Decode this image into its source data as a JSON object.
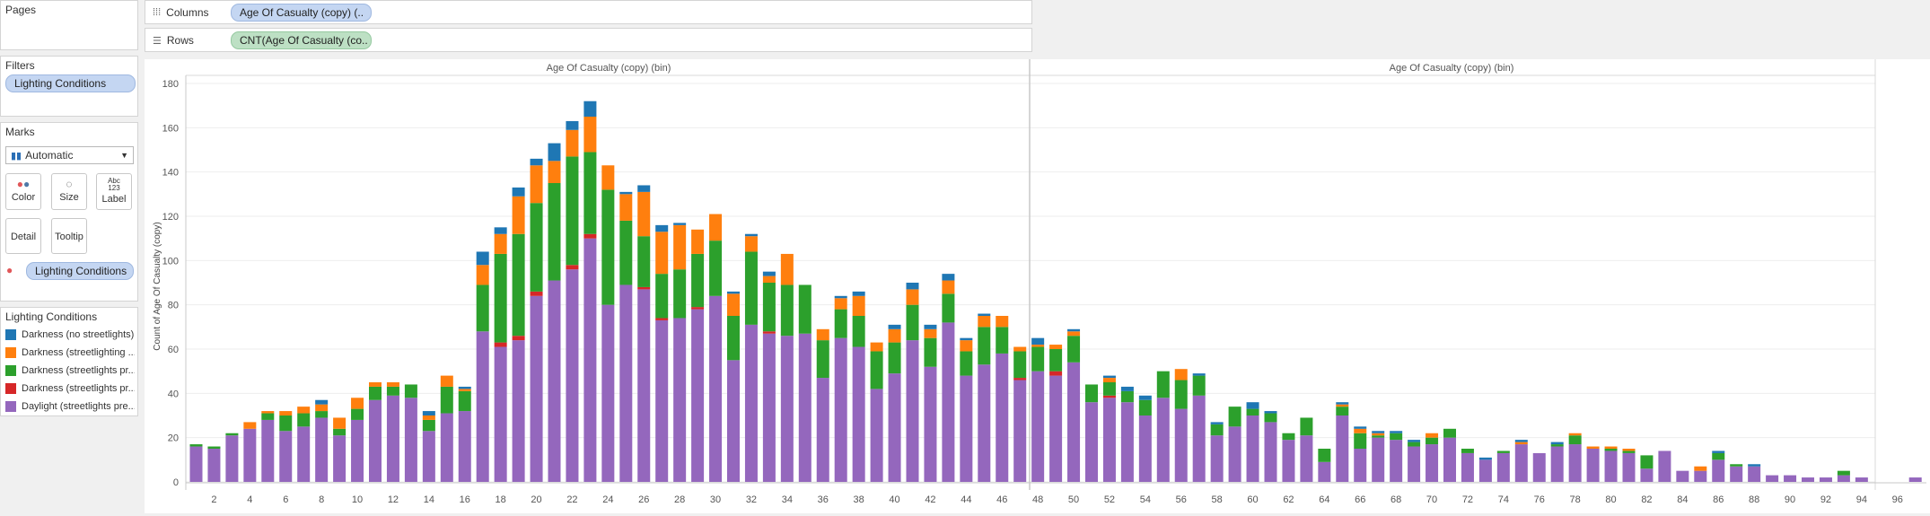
{
  "shelves": {
    "pages_label": "Pages",
    "filters_label": "Filters",
    "filter_pill": "Lighting Conditions",
    "marks_label": "Marks",
    "mark_type": "Automatic",
    "mark_buttons": {
      "color": "Color",
      "size": "Size",
      "label": "Label",
      "detail": "Detail",
      "tooltip": "Tooltip"
    },
    "color_pill": "Lighting Conditions",
    "columns_label": "Columns",
    "columns_pill": "Age Of Casualty (copy) (..",
    "rows_label": "Rows",
    "rows_pill": "CNT(Age Of Casualty (co.."
  },
  "legend": {
    "title": "Lighting Conditions",
    "items": [
      {
        "label": "Darkness (no streetlights)",
        "color": "#1f77b4"
      },
      {
        "label": "Darkness (streetlighting ...",
        "color": "#ff7f0e"
      },
      {
        "label": "Darkness (streetlights pr...",
        "color": "#2ca02c"
      },
      {
        "label": "Darkness (streetlights pr...",
        "color": "#d62728"
      },
      {
        "label": "Daylight (streetlights pre...",
        "color": "#9467bd"
      }
    ]
  },
  "chart_data": {
    "type": "bar",
    "stacked": true,
    "header_title": "Age Of Casualty (copy) (bin)",
    "ylabel": "Count of Age Of Casualty (copy)",
    "ylim": [
      0,
      180
    ],
    "yticks": [
      0,
      20,
      40,
      60,
      80,
      100,
      120,
      140,
      160,
      180
    ],
    "x": [
      1,
      2,
      3,
      4,
      5,
      6,
      7,
      8,
      9,
      10,
      11,
      12,
      13,
      14,
      15,
      16,
      17,
      18,
      19,
      20,
      21,
      22,
      23,
      24,
      25,
      26,
      27,
      28,
      29,
      30,
      31,
      32,
      33,
      34,
      35,
      36,
      37,
      38,
      39,
      40,
      41,
      42,
      43,
      44,
      45,
      46,
      47,
      48,
      49,
      50,
      51,
      52,
      53,
      54,
      55,
      56,
      57,
      58,
      59,
      60,
      61,
      62,
      63,
      64,
      65,
      66,
      67,
      68,
      69,
      70,
      71,
      72,
      73,
      74,
      75,
      76,
      77,
      78,
      79,
      80,
      81,
      82,
      83,
      84,
      85,
      86,
      87,
      88,
      89,
      90,
      91,
      92,
      93,
      94,
      95,
      96,
      97
    ],
    "xtick_labels": [
      "2",
      "4",
      "6",
      "8",
      "10",
      "12",
      "14",
      "16",
      "18",
      "20",
      "22",
      "24",
      "26",
      "28",
      "30",
      "32",
      "34",
      "36",
      "38",
      "40",
      "42",
      "44",
      "46",
      "48",
      "50",
      "52",
      "54",
      "56",
      "58",
      "60",
      "62",
      "64",
      "66",
      "68",
      "70",
      "72",
      "74",
      "76",
      "78",
      "80",
      "82",
      "84",
      "86",
      "88",
      "90",
      "92",
      "94",
      "96"
    ],
    "series": [
      {
        "name": "Daylight (streetlights pre...",
        "color": "#9467bd",
        "values": [
          16,
          15,
          21,
          24,
          28,
          23,
          25,
          29,
          21,
          28,
          37,
          39,
          38,
          23,
          31,
          32,
          68,
          61,
          64,
          84,
          91,
          96,
          110,
          80,
          89,
          87,
          73,
          74,
          78,
          84,
          55,
          71,
          67,
          66,
          67,
          47,
          65,
          61,
          42,
          49,
          64,
          52,
          72,
          48,
          53,
          58,
          46,
          50,
          48,
          54,
          36,
          38,
          36,
          30,
          38,
          33,
          39,
          21,
          25,
          30,
          27,
          19,
          21,
          9,
          30,
          15,
          20,
          19,
          16,
          17,
          20,
          13,
          10,
          13,
          17,
          13,
          16,
          17,
          15,
          14,
          13,
          6,
          14,
          5,
          5,
          10,
          7,
          7,
          3,
          3,
          2,
          2,
          3,
          2,
          0,
          0,
          2
        ]
      },
      {
        "name": "Darkness (streetlights pr...",
        "color": "#d62728",
        "values": [
          0,
          0,
          0,
          0,
          0,
          0,
          0,
          0,
          0,
          0,
          0,
          0,
          0,
          0,
          0,
          0,
          0,
          2,
          2,
          2,
          0,
          2,
          2,
          0,
          0,
          1,
          1,
          0,
          1,
          0,
          0,
          0,
          1,
          0,
          0,
          0,
          0,
          0,
          0,
          0,
          0,
          0,
          0,
          0,
          0,
          0,
          1,
          0,
          2,
          0,
          0,
          1,
          0,
          0,
          0,
          0,
          0,
          0,
          0,
          0,
          0,
          0,
          0,
          0,
          0,
          0,
          0,
          0,
          0,
          0,
          0,
          0,
          0,
          0,
          0,
          0,
          0,
          0,
          0,
          0,
          0,
          0,
          0,
          0,
          0,
          0,
          0,
          0,
          0,
          0,
          0,
          0,
          0,
          0,
          0,
          0,
          0
        ]
      },
      {
        "name": "Darkness (streetlights pr...",
        "color": "#2ca02c",
        "values": [
          1,
          1,
          1,
          0,
          3,
          7,
          6,
          3,
          3,
          5,
          6,
          4,
          6,
          5,
          12,
          9,
          21,
          40,
          46,
          40,
          44,
          49,
          37,
          52,
          29,
          23,
          20,
          22,
          24,
          25,
          20,
          33,
          22,
          23,
          22,
          17,
          13,
          14,
          17,
          14,
          16,
          13,
          13,
          11,
          17,
          12,
          12,
          11,
          10,
          12,
          8,
          6,
          5,
          7,
          12,
          13,
          9,
          5,
          9,
          3,
          4,
          3,
          8,
          6,
          4,
          7,
          1,
          3,
          2,
          3,
          4,
          2,
          0,
          1,
          0,
          0,
          1,
          4,
          0,
          1,
          1,
          6,
          0,
          0,
          0,
          3,
          1,
          0,
          0,
          0,
          0,
          0,
          2,
          0,
          0,
          0,
          0
        ]
      },
      {
        "name": "Darkness (streetlighting ...",
        "color": "#ff7f0e",
        "values": [
          0,
          0,
          0,
          3,
          1,
          2,
          3,
          3,
          5,
          5,
          2,
          2,
          0,
          2,
          5,
          1,
          9,
          9,
          17,
          17,
          10,
          12,
          16,
          11,
          12,
          20,
          19,
          20,
          11,
          12,
          10,
          7,
          3,
          14,
          0,
          5,
          5,
          9,
          4,
          6,
          7,
          4,
          6,
          5,
          5,
          5,
          2,
          1,
          2,
          2,
          0,
          2,
          0,
          0,
          0,
          5,
          0,
          0,
          0,
          0,
          0,
          0,
          0,
          0,
          1,
          2,
          1,
          0,
          0,
          2,
          0,
          0,
          0,
          0,
          1,
          0,
          0,
          1,
          1,
          1,
          1,
          0,
          0,
          0,
          2,
          0,
          0,
          0,
          0,
          0,
          0,
          0,
          0,
          0,
          0,
          0,
          0
        ]
      },
      {
        "name": "Darkness (no streetlights)",
        "color": "#1f77b4",
        "values": [
          0,
          0,
          0,
          0,
          0,
          0,
          0,
          2,
          0,
          0,
          0,
          0,
          0,
          2,
          0,
          1,
          6,
          3,
          4,
          3,
          8,
          4,
          7,
          0,
          1,
          3,
          3,
          1,
          0,
          0,
          1,
          1,
          2,
          0,
          0,
          0,
          1,
          2,
          0,
          2,
          3,
          2,
          3,
          1,
          1,
          0,
          0,
          3,
          0,
          1,
          0,
          1,
          2,
          2,
          0,
          0,
          1,
          1,
          0,
          3,
          1,
          0,
          0,
          0,
          1,
          1,
          1,
          1,
          1,
          0,
          0,
          0,
          1,
          0,
          1,
          0,
          1,
          0,
          0,
          0,
          0,
          0,
          0,
          0,
          0,
          1,
          0,
          1,
          0,
          0,
          0,
          0,
          0,
          0,
          0,
          0,
          0
        ]
      }
    ]
  }
}
